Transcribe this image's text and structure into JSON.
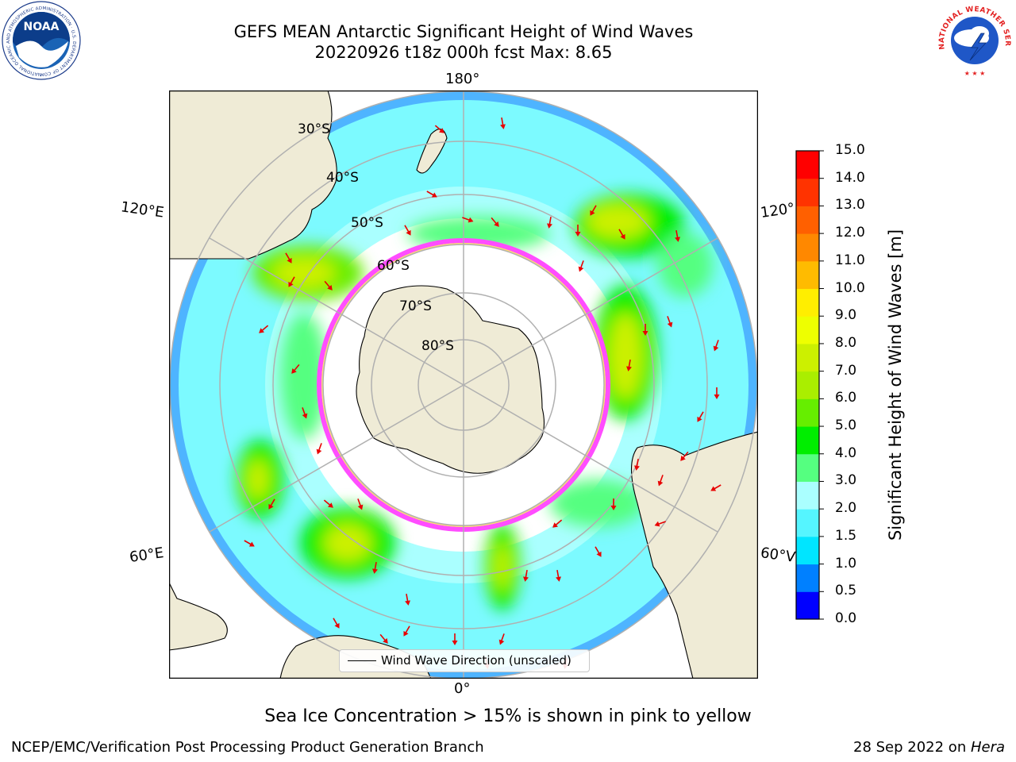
{
  "title": {
    "line1": "GEFS MEAN Antarctic Significant Height of Wind Waves",
    "line2": "20220926 t18z 000h fcst   Max: 8.65"
  },
  "map": {
    "projection": "south-polar-stereographic",
    "longitude_labels": {
      "top": "180°",
      "bottom": "0°",
      "left_upper": "120°E",
      "left_lower": "60°E",
      "right_upper": "120°",
      "right_lower": "60°V"
    },
    "latitude_labels": [
      "30°S",
      "40°S",
      "50°S",
      "60°S",
      "70°S",
      "80°S"
    ],
    "land_color": "#efebd6",
    "sea_ice_edge_color": "#ff4dff",
    "legend_label": "Wind Wave Direction (unscaled)",
    "arrow_color": "#e80000"
  },
  "colorbar": {
    "title": "Significant Height of Wind Waves [m]",
    "ticks": [
      "0.0",
      "0.5",
      "1.0",
      "1.5",
      "2.0",
      "3.0",
      "4.0",
      "5.0",
      "6.0",
      "7.0",
      "8.0",
      "9.0",
      "10.0",
      "11.0",
      "12.0",
      "13.0",
      "14.0",
      "15.0"
    ],
    "colors": [
      "#0000ff",
      "#0080ff",
      "#00e5ff",
      "#55f5ff",
      "#aaffff",
      "#55ff80",
      "#00ee00",
      "#66ee00",
      "#aaee00",
      "#ccf000",
      "#eeff00",
      "#ffee00",
      "#ffbb00",
      "#ff8800",
      "#ff6000",
      "#ff3300",
      "#ff0000"
    ]
  },
  "note": "Sea Ice Concentration > 15% is shown in pink to yellow",
  "footer": {
    "org": "NCEP/EMC/Verification Post Processing Product Generation Branch",
    "date": "28 Sep 2022 on ",
    "machine": "Hera"
  },
  "logos": {
    "noaa_text": "NOAA",
    "noaa_ring": "NATIONAL OCEANIC AND ATMOSPHERIC ADMINISTRATION · U.S. DEPARTMENT OF COMMERCE",
    "nws_ring": "NATIONAL WEATHER SERVICE"
  }
}
